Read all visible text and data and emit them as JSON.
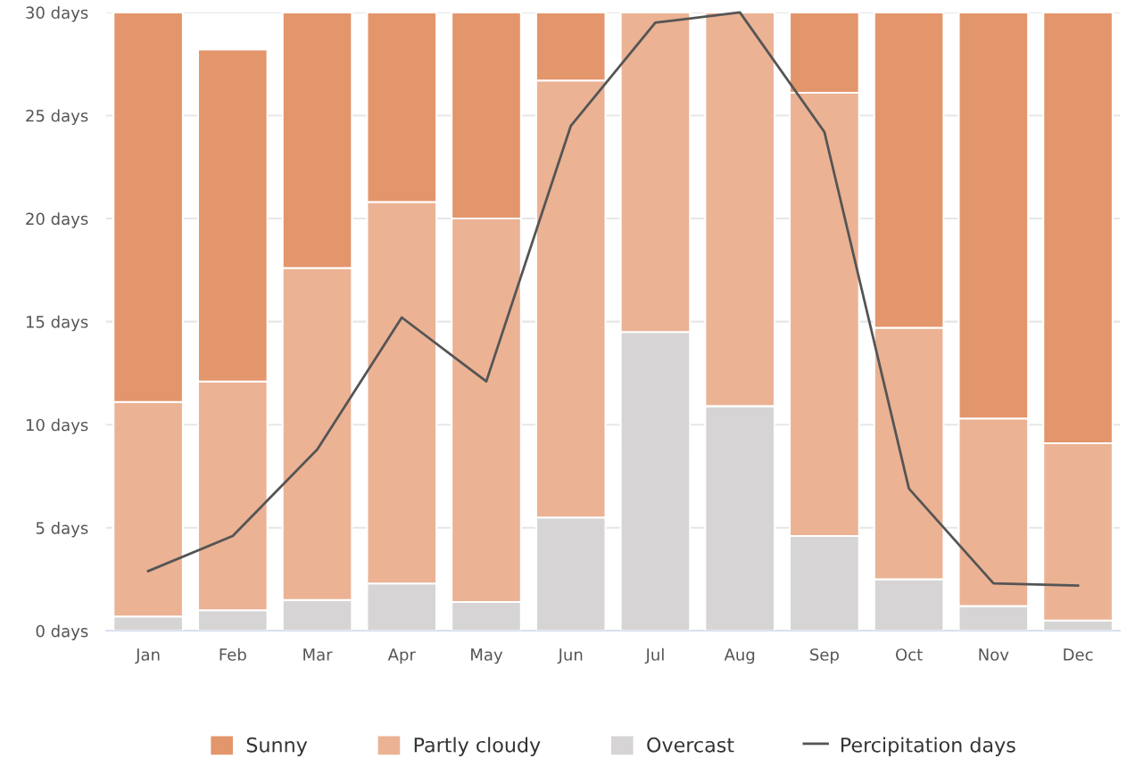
{
  "chart_data": {
    "type": "bar",
    "stacked": true,
    "categories": [
      "Jan",
      "Feb",
      "Mar",
      "Apr",
      "May",
      "Jun",
      "Jul",
      "Aug",
      "Sep",
      "Oct",
      "Nov",
      "Dec"
    ],
    "series": [
      {
        "name": "Overcast",
        "color": "#d6d4d4",
        "values": [
          0.7,
          1.0,
          1.5,
          2.3,
          1.4,
          5.5,
          14.5,
          10.9,
          4.6,
          2.5,
          1.2,
          0.5
        ]
      },
      {
        "name": "Partly cloudy",
        "color": "#ebb294",
        "values": [
          10.4,
          11.1,
          16.1,
          18.5,
          18.6,
          21.2,
          15.5,
          19.1,
          21.5,
          12.2,
          9.1,
          8.6
        ]
      },
      {
        "name": "Sunny",
        "color": "#e3956b",
        "values": [
          18.9,
          16.1,
          12.4,
          9.2,
          10.0,
          3.3,
          0,
          0,
          3.9,
          15.3,
          19.7,
          20.9
        ]
      },
      {
        "name": "Percipitation days",
        "type": "line",
        "color": "#555555",
        "values": [
          2.9,
          4.6,
          8.8,
          15.2,
          12.1,
          24.5,
          29.5,
          30,
          24.2,
          6.9,
          2.3,
          2.2
        ]
      }
    ],
    "ylim": [
      0,
      30
    ],
    "yticks": [
      {
        "value": 0,
        "label": "0 days"
      },
      {
        "value": 5,
        "label": "5 days"
      },
      {
        "value": 10,
        "label": "10 days"
      },
      {
        "value": 15,
        "label": "15 days"
      },
      {
        "value": 20,
        "label": "20 days"
      },
      {
        "value": 25,
        "label": "25 days"
      },
      {
        "value": 30,
        "label": "30 days"
      }
    ],
    "grid": "y",
    "legend": "bottom",
    "line_style": "solid",
    "marker": "none"
  }
}
